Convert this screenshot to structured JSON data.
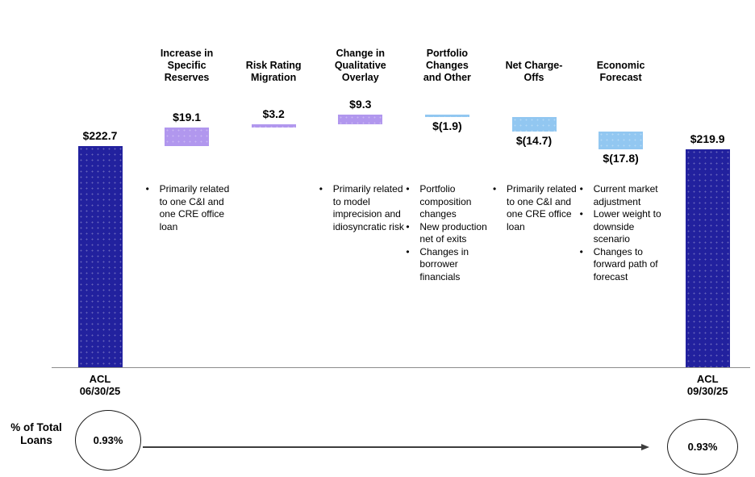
{
  "chart_data": {
    "type": "waterfall",
    "title": "",
    "columns": [
      {
        "key": "acl_start",
        "label": "ACL\n06/30/25",
        "kind": "total",
        "value": 222.7,
        "display": "$222.7",
        "notes": []
      },
      {
        "key": "specific_reserves",
        "label": "Increase in\nSpecific\nReserves",
        "kind": "increase",
        "value": 19.1,
        "display": "$19.1",
        "notes": [
          "Primarily related to one C&I and one CRE office loan"
        ]
      },
      {
        "key": "risk_rating_migration",
        "label": "Risk Rating\nMigration",
        "kind": "increase",
        "value": 3.2,
        "display": "$3.2",
        "notes": []
      },
      {
        "key": "qualitative_overlay",
        "label": "Change in\nQualitative\nOverlay",
        "kind": "increase",
        "value": 9.3,
        "display": "$9.3",
        "notes": [
          "Primarily related to model imprecision and idiosyncratic risk"
        ]
      },
      {
        "key": "portfolio_changes",
        "label": "Portfolio\nChanges\nand Other",
        "kind": "decrease",
        "value": -1.9,
        "display": "$(1.9)",
        "notes": [
          "Portfolio composition changes",
          "New production net of exits",
          "Changes in borrower financials"
        ]
      },
      {
        "key": "net_charge_offs",
        "label": "Net Charge-\nOffs",
        "kind": "decrease",
        "value": -14.7,
        "display": "$(14.7)",
        "notes": [
          "Primarily related to one C&I and one CRE office loan"
        ]
      },
      {
        "key": "economic_forecast",
        "label": "Economic\nForecast",
        "kind": "decrease",
        "value": -17.8,
        "display": "$(17.8)",
        "notes": [
          "Current market adjustment",
          "Lower weight to downside scenario",
          "Changes to forward path of forecast"
        ]
      },
      {
        "key": "acl_end",
        "label": "ACL\n09/30/25",
        "kind": "total",
        "value": 219.9,
        "display": "$219.9",
        "notes": []
      }
    ],
    "start_total": 222.7,
    "end_total": 219.9,
    "ylim": [
      0,
      260
    ],
    "grid": false,
    "colors": {
      "total": "#22219E",
      "increase": "#B197EE",
      "decrease": "#92C7F1",
      "axis": "#8C8C8C",
      "arrow": "#3D3D3D"
    },
    "footer": {
      "label": "% of Total\nLoans",
      "start_pct": "0.93%",
      "end_pct": "0.93%"
    }
  }
}
